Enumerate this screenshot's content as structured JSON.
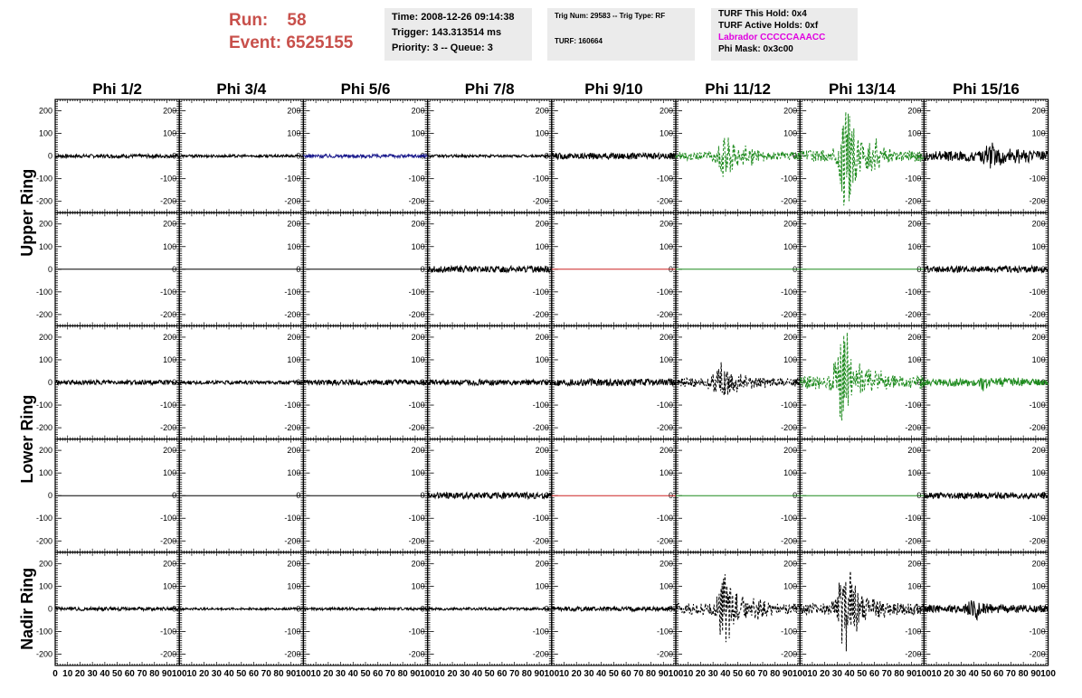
{
  "header": {
    "run_label": "Run:",
    "run_value": "58",
    "event_label": "Event:",
    "event_value": "6525155",
    "time": "Time: 2008-12-26 09:14:38",
    "trigger": "Trigger: 143.313514 ms",
    "priority": "Priority: 3 -- Queue: 3",
    "trig_num": "Trig Num: 29583 -- Trig Type: RF",
    "turf": "TURF: 160664",
    "turf_this_hold": "TURF This Hold: 0x4",
    "turf_active_holds": "TURF Active Holds: 0xf",
    "labrador": "Labrador CCCCCAAACC",
    "phi_mask": "Phi Mask: 0x3c00"
  },
  "colors": {
    "run": "#c8504b",
    "labrador": "#e000e0",
    "info_bg": "#ebebeb"
  },
  "chart_data": {
    "type": "line",
    "columns": [
      "Phi 1/2",
      "Phi 3/4",
      "Phi 5/6",
      "Phi 7/8",
      "Phi 9/10",
      "Phi 11/12",
      "Phi 13/14",
      "Phi 15/16"
    ],
    "rows": [
      "Upper Ring",
      "Lower Ring",
      "Nadir Ring"
    ],
    "xlim": [
      0,
      100
    ],
    "x_ticks": [
      0,
      10,
      20,
      30,
      40,
      50,
      60,
      70,
      80,
      90,
      100
    ],
    "ylim": [
      -250,
      250
    ],
    "y_ticks": [
      -200,
      -100,
      0,
      100,
      200
    ],
    "grid": false,
    "panels": [
      {
        "row": 0,
        "col": 0,
        "color": "#000000",
        "style": "solid",
        "amp": 8
      },
      {
        "row": 0,
        "col": 1,
        "color": "#000000",
        "style": "solid",
        "amp": 6
      },
      {
        "row": 0,
        "col": 2,
        "color": "#1a1a8c",
        "style": "solid",
        "amp": 8
      },
      {
        "row": 0,
        "col": 3,
        "color": "#000000",
        "style": "solid",
        "amp": 6
      },
      {
        "row": 0,
        "col": 4,
        "color": "#000000",
        "style": "solid",
        "amp": 14
      },
      {
        "row": 0,
        "col": 5,
        "color": "#1d8a1d",
        "style": "dashed",
        "amp": 18,
        "pulse_x": 40,
        "pulse_amp": 90
      },
      {
        "row": 0,
        "col": 6,
        "color": "#1d8a1d",
        "style": "dashed",
        "amp": 25,
        "pulse_x": 37,
        "pulse_amp": 210
      },
      {
        "row": 0,
        "col": 7,
        "color": "#000000",
        "style": "solid",
        "amp": 22,
        "pulse_x": 55,
        "pulse_amp": 50
      },
      {
        "row": 1,
        "col": 0,
        "color": "#000000",
        "style": "solid",
        "amp": 0
      },
      {
        "row": 1,
        "col": 1,
        "color": "#000000",
        "style": "solid",
        "amp": 0
      },
      {
        "row": 1,
        "col": 2,
        "color": "#000000",
        "style": "solid",
        "amp": 0
      },
      {
        "row": 1,
        "col": 3,
        "color": "#000000",
        "style": "solid",
        "amp": 14
      },
      {
        "row": 1,
        "col": 4,
        "color": "#cc2222",
        "style": "solid",
        "amp": 0
      },
      {
        "row": 1,
        "col": 5,
        "color": "#1d8a1d",
        "style": "solid",
        "amp": 0
      },
      {
        "row": 1,
        "col": 6,
        "color": "#1d8a1d",
        "style": "solid",
        "amp": 0
      },
      {
        "row": 1,
        "col": 7,
        "color": "#000000",
        "style": "solid",
        "amp": 14
      },
      {
        "row": 2,
        "col": 0,
        "color": "#000000",
        "style": "solid",
        "amp": 10
      },
      {
        "row": 2,
        "col": 1,
        "color": "#000000",
        "style": "solid",
        "amp": 8
      },
      {
        "row": 2,
        "col": 2,
        "color": "#000000",
        "style": "solid",
        "amp": 12
      },
      {
        "row": 2,
        "col": 3,
        "color": "#000000",
        "style": "solid",
        "amp": 12
      },
      {
        "row": 2,
        "col": 4,
        "color": "#000000",
        "style": "solid",
        "amp": 16
      },
      {
        "row": 2,
        "col": 5,
        "color": "#000000",
        "style": "dashed",
        "amp": 20,
        "pulse_x": 35,
        "pulse_amp": 80
      },
      {
        "row": 2,
        "col": 6,
        "color": "#1d8a1d",
        "style": "dashed",
        "amp": 30,
        "pulse_x": 35,
        "pulse_amp": 200
      },
      {
        "row": 2,
        "col": 7,
        "color": "#1d8a1d",
        "style": "solid",
        "amp": 16,
        "pulse_x": 50,
        "pulse_amp": 25
      },
      {
        "row": 3,
        "col": 0,
        "color": "#000000",
        "style": "solid",
        "amp": 0
      },
      {
        "row": 3,
        "col": 1,
        "color": "#000000",
        "style": "solid",
        "amp": 0
      },
      {
        "row": 3,
        "col": 2,
        "color": "#000000",
        "style": "solid",
        "amp": 0
      },
      {
        "row": 3,
        "col": 3,
        "color": "#000000",
        "style": "solid",
        "amp": 14
      },
      {
        "row": 3,
        "col": 4,
        "color": "#cc2222",
        "style": "solid",
        "amp": 0
      },
      {
        "row": 3,
        "col": 5,
        "color": "#1d8a1d",
        "style": "solid",
        "amp": 0
      },
      {
        "row": 3,
        "col": 6,
        "color": "#1d8a1d",
        "style": "solid",
        "amp": 0
      },
      {
        "row": 3,
        "col": 7,
        "color": "#000000",
        "style": "solid",
        "amp": 14
      },
      {
        "row": 4,
        "col": 0,
        "color": "#000000",
        "style": "solid",
        "amp": 8
      },
      {
        "row": 4,
        "col": 1,
        "color": "#000000",
        "style": "solid",
        "amp": 5
      },
      {
        "row": 4,
        "col": 2,
        "color": "#000000",
        "style": "solid",
        "amp": 6
      },
      {
        "row": 4,
        "col": 3,
        "color": "#000000",
        "style": "solid",
        "amp": 6
      },
      {
        "row": 4,
        "col": 4,
        "color": "#000000",
        "style": "solid",
        "amp": 10
      },
      {
        "row": 4,
        "col": 5,
        "color": "#000000",
        "style": "dashed",
        "amp": 25,
        "pulse_x": 40,
        "pulse_amp": 130
      },
      {
        "row": 4,
        "col": 6,
        "color": "#000000",
        "style": "dashed",
        "amp": 25,
        "pulse_x": 37,
        "pulse_amp": 180
      },
      {
        "row": 4,
        "col": 7,
        "color": "#000000",
        "style": "solid",
        "amp": 16,
        "pulse_x": 40,
        "pulse_amp": 40
      }
    ]
  }
}
